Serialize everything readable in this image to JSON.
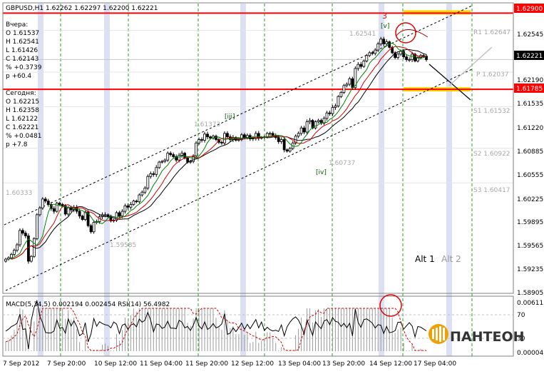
{
  "chart_data": {
    "type": "candlestick",
    "header": "GBPUSD,H1  1.62262 1.62297 1.62200 1.62221",
    "yesterday": {
      "title": "Вчера:",
      "lines": [
        "O 1.61537",
        "H 1.62541",
        "L 1.61426",
        "C 1.62143",
        "% +0.3739",
        "p +60.4"
      ]
    },
    "today": {
      "title": "Сегодня:",
      "lines": [
        "O 1.62215",
        "H 1.62358",
        "L 1.62122",
        "C 1.62221",
        "% +0.0481",
        "p +7.8"
      ]
    },
    "ylim": [
      1.5881,
      1.6304
    ],
    "y_ticks": [
      "1.62545",
      "1.62190",
      "1.61535",
      "1.61220",
      "1.60885",
      "1.60555",
      "1.60225",
      "1.59895",
      "1.59565",
      "1.59235",
      "1.58905"
    ],
    "x_ticks": [
      "7 Sep 2012",
      "7 Sep 20:00",
      "10 Sep 12:00",
      "11 Sep 04:00",
      "11 Sep 20:00",
      "12 Sep 12:00",
      "13 Sep 04:00",
      "13 Sep 20:00",
      "14 Sep 12:00",
      "17 Sep 04:00"
    ],
    "price_labels": [
      {
        "text": "1.62900",
        "value": 1.629,
        "kind": "resistance"
      },
      {
        "text": "1.62221",
        "value": 1.62221,
        "kind": "current"
      },
      {
        "text": "1.61785",
        "value": 1.61785,
        "kind": "support"
      }
    ],
    "pivots": [
      {
        "text": "R1 1.62647",
        "value": 1.62647
      },
      {
        "text": "P 1.62037",
        "value": 1.62037
      },
      {
        "text": "S1 1.61532",
        "value": 1.61532
      },
      {
        "text": "S2 1.60922",
        "value": 1.60922
      },
      {
        "text": "S3 1.60417",
        "value": 1.60417
      }
    ],
    "ghost_labels": [
      "1.62541",
      "1.61373",
      "1.60333",
      "1.60737",
      "1.59585"
    ],
    "wave_labels": [
      "3",
      "[v]",
      "[iii]",
      "[iv]"
    ],
    "alt_labels": [
      "Alt 1",
      "Alt 2"
    ],
    "closes": [
      1.593,
      1.5932,
      1.5937,
      1.5943,
      1.5951,
      1.5972,
      1.5968,
      1.5964,
      1.5927,
      1.5934,
      1.596,
      1.5995,
      1.6005,
      1.6018,
      1.6015,
      1.601,
      1.6004,
      1.6,
      1.6012,
      1.601,
      1.6008,
      1.5996,
      1.6005,
      1.6002,
      1.6006,
      1.6,
      1.5993,
      1.5988,
      1.5999,
      1.5979,
      1.597,
      1.5984,
      1.5985,
      1.5992,
      1.5995,
      1.5995,
      1.5993,
      1.5986,
      1.5987,
      1.5998,
      1.5993,
      1.6,
      1.6008,
      1.6006,
      1.601,
      1.6015,
      1.6014,
      1.6024,
      1.6028,
      1.6034,
      1.6051,
      1.6055,
      1.6054,
      1.6064,
      1.6072,
      1.6073,
      1.6075,
      1.6085,
      1.6083,
      1.608,
      1.6075,
      1.6082,
      1.6085,
      1.6078,
      1.6072,
      1.6073,
      1.6081,
      1.61,
      1.6105,
      1.6104,
      1.6113,
      1.6109,
      1.6107,
      1.611,
      1.6105,
      1.6101,
      1.61,
      1.6114,
      1.6109,
      1.6105,
      1.6108,
      1.6104,
      1.6105,
      1.6112,
      1.6108,
      1.6111,
      1.6106,
      1.6107,
      1.6114,
      1.6107,
      1.6108,
      1.6109,
      1.6114,
      1.6114,
      1.6111,
      1.6108,
      1.6102,
      1.6105,
      1.609,
      1.6088,
      1.6092,
      1.61,
      1.611,
      1.6114,
      1.6122,
      1.6116,
      1.6131,
      1.6133,
      1.6122,
      1.6131,
      1.6133,
      1.6129,
      1.6136,
      1.6144,
      1.6143,
      1.6152,
      1.6154,
      1.6168,
      1.6174,
      1.6184,
      1.6186,
      1.6194,
      1.6181,
      1.6209,
      1.6215,
      1.6212,
      1.622,
      1.6228,
      1.6232,
      1.6231,
      1.6236,
      1.6245,
      1.6252,
      1.6245,
      1.6248,
      1.624,
      1.6232,
      1.6225,
      1.623,
      1.6234,
      1.6226,
      1.6222,
      1.6222,
      1.623,
      1.622,
      1.6225,
      1.6228,
      1.6227,
      1.6222
    ]
  }
}
